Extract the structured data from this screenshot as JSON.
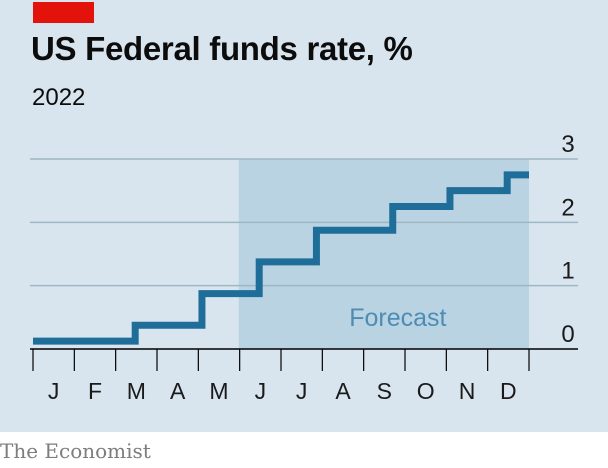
{
  "header": {
    "title": "US Federal funds rate, %",
    "subtitle": "2022"
  },
  "footer": {
    "source": "The Economist"
  },
  "colors": {
    "line": "#1f6e99",
    "grid": "#9fb6c4",
    "forecast_band": "#b9d3e2",
    "accent_red": "#e3120b",
    "background": "#d8e5ee"
  },
  "chart_data": {
    "type": "line",
    "step": true,
    "title": "US Federal funds rate, %",
    "subtitle": "2022",
    "xlabel": "",
    "ylabel": "",
    "x_ticks": [
      "J",
      "F",
      "M",
      "A",
      "M",
      "J",
      "J",
      "A",
      "S",
      "O",
      "N",
      "D"
    ],
    "y_ticks": [
      0,
      1,
      2,
      3
    ],
    "ylim": [
      0,
      3
    ],
    "xlim": [
      "2022-01-01",
      "2022-12-31"
    ],
    "grid": true,
    "annotations": [
      {
        "text": "Forecast",
        "x_start": "2022-06-01",
        "x_end": "2022-12-31"
      }
    ],
    "series": [
      {
        "x": [
          "2022-01-01",
          "2022-03-17",
          "2022-05-05",
          "2022-06-16",
          "2022-07-28",
          "2022-09-22",
          "2022-11-03",
          "2022-12-15",
          "2022-12-31"
        ],
        "y": [
          0.125,
          0.375,
          0.875,
          1.375,
          1.875,
          2.25,
          2.5,
          2.75,
          2.75
        ]
      }
    ]
  }
}
